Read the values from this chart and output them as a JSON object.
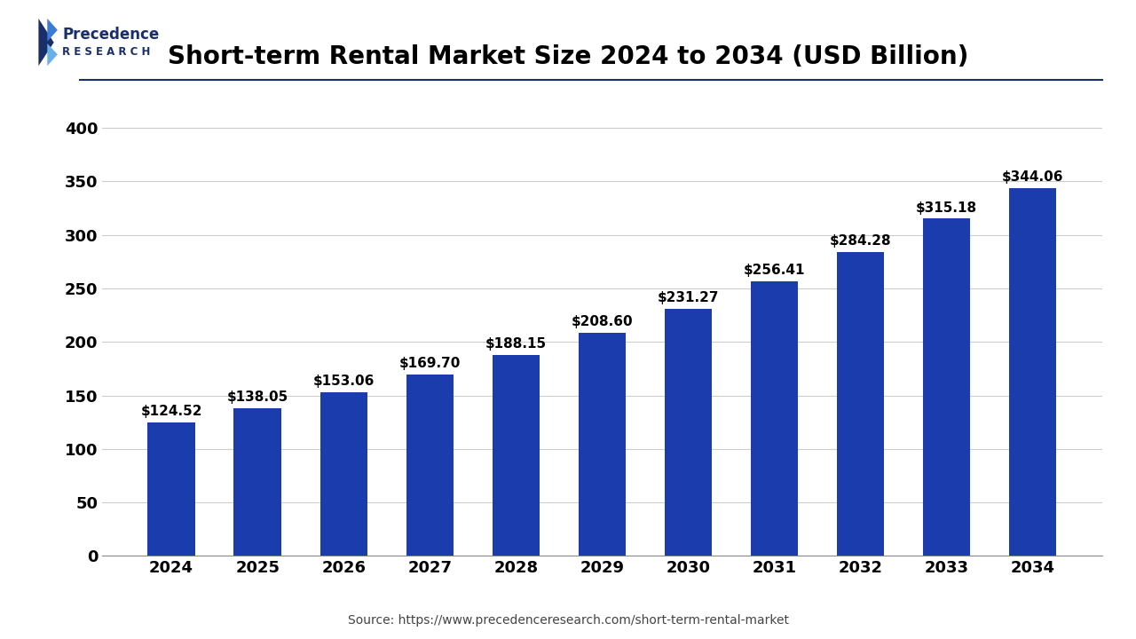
{
  "years": [
    "2024",
    "2025",
    "2026",
    "2027",
    "2028",
    "2029",
    "2030",
    "2031",
    "2032",
    "2033",
    "2034"
  ],
  "values": [
    124.52,
    138.05,
    153.06,
    169.7,
    188.15,
    208.6,
    231.27,
    256.41,
    284.28,
    315.18,
    344.06
  ],
  "labels": [
    "$124.52",
    "$138.05",
    "$153.06",
    "$169.70",
    "$188.15",
    "$208.60",
    "$231.27",
    "$256.41",
    "$284.28",
    "$315.18",
    "$344.06"
  ],
  "bar_color": "#1a3cad",
  "title": "Short-term Rental Market Size 2024 to 2034 (USD Billion)",
  "title_fontsize": 20,
  "source_text": "Source: https://www.precedenceresearch.com/short-term-rental-market",
  "background_color": "#ffffff",
  "ylim": [
    0,
    430
  ],
  "yticks": [
    0,
    50,
    100,
    150,
    200,
    250,
    300,
    350,
    400
  ],
  "bar_label_fontsize": 11,
  "tick_fontsize": 13,
  "logo_text_top": "Precedence",
  "logo_text_bottom": "R E S E A R C H",
  "logo_color_dark": "#1a2e6b",
  "logo_color_light": "#3a7bd5",
  "logo_color_lighter": "#6ab0e8",
  "separator_color": "#1a2e6b"
}
